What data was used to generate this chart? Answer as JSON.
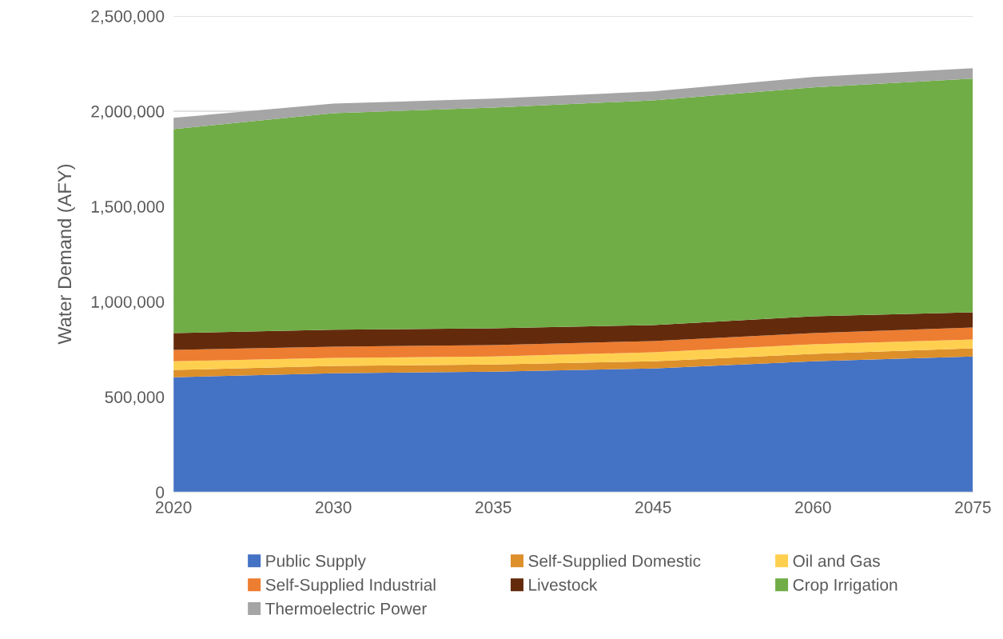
{
  "chart_data": {
    "type": "area",
    "stacked": true,
    "ylabel": "Water Demand (AFY)",
    "categories": [
      "2020",
      "2030",
      "2035",
      "2045",
      "2060",
      "2075"
    ],
    "ylim": [
      0,
      2500000
    ],
    "yticks": [
      {
        "value": 0,
        "label": "0"
      },
      {
        "value": 500000,
        "label": "500,000"
      },
      {
        "value": 1000000,
        "label": "1,000,000"
      },
      {
        "value": 1500000,
        "label": "1,500,000"
      },
      {
        "value": 2000000,
        "label": "2,000,000"
      },
      {
        "value": 2500000,
        "label": "2,500,000"
      }
    ],
    "grid": "y",
    "legend": "bottom",
    "series": [
      {
        "name": "Public Supply",
        "color": "#4472c4",
        "values": [
          603000,
          624000,
          632000,
          649000,
          687000,
          712000
        ]
      },
      {
        "name": "Self-Supplied Domestic",
        "color": "#dd8f2a",
        "values": [
          38000,
          38000,
          38000,
          38000,
          38000,
          43000
        ]
      },
      {
        "name": "Oil and Gas",
        "color": "#ffd04f",
        "values": [
          46000,
          42000,
          42000,
          47000,
          51000,
          46000
        ]
      },
      {
        "name": "Self-Supplied Industrial",
        "color": "#ed7d31",
        "values": [
          59000,
          59000,
          60000,
          59000,
          59000,
          63000
        ]
      },
      {
        "name": "Livestock",
        "color": "#632b0c",
        "values": [
          89000,
          89000,
          88000,
          84000,
          88000,
          80000
        ]
      },
      {
        "name": "Crop Irrigation",
        "color": "#70ad47",
        "values": [
          1071000,
          1138000,
          1159000,
          1180000,
          1202000,
          1227000
        ]
      },
      {
        "name": "Thermoelectric Power",
        "color": "#a5a5a5",
        "values": [
          59000,
          50000,
          47000,
          47000,
          55000,
          55000
        ]
      }
    ]
  }
}
